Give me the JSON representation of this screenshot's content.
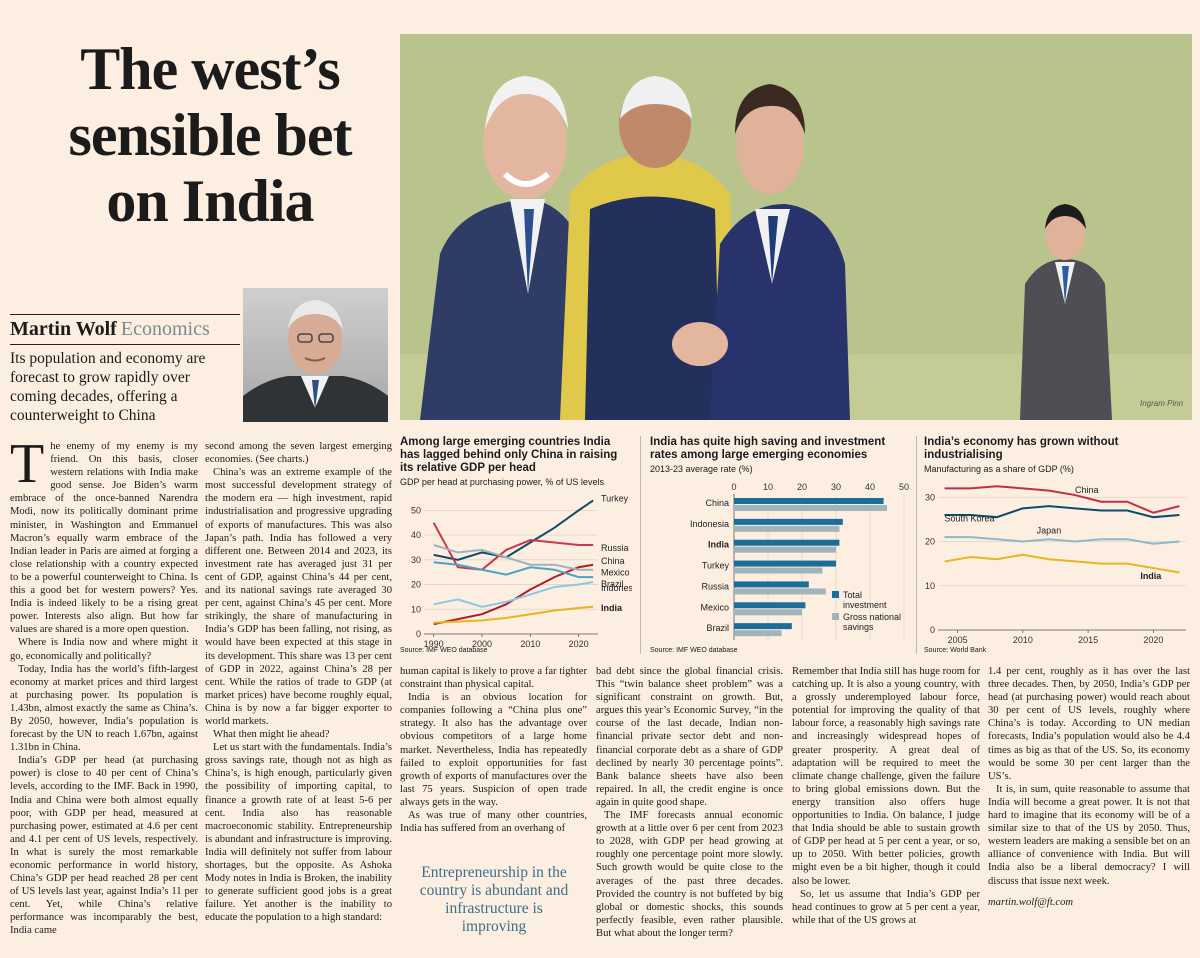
{
  "article": {
    "headline": [
      "The west’s",
      "sensible bet",
      "on India"
    ],
    "author": "Martin Wolf",
    "section": "Economics",
    "standfirst": "Its population and economy are forecast to grow rapidly over coming decades, offering a counterweight to China",
    "illustration_signature": "Ingram Pinn",
    "pull_quote": "Entrepreneurship in the country is abundant and infrastructure is improving",
    "email": "martin.wolf@ft.com",
    "dropcap": "T",
    "columns": [
      [
        "he enemy of my enemy is my friend. On this basis, closer western relations with India make good sense. Joe Biden’s warm embrace of the once-banned Narendra Modi, now its politically dominant prime minister, in Washington and Emmanuel Macron’s equally warm embrace of the Indian leader in Paris are aimed at forging a close relationship with a country expected to be a powerful counterweight to China. Is this a good bet for western powers? Yes. India is indeed likely to be a rising great power. Interests also align. But how far values are shared is a more open question.",
        "Where is India now and where might it go, economically and politically?",
        "Today, India has the world’s fifth-largest economy at market prices and third largest at purchasing power. Its population is 1.43bn, almost exactly the same as China’s. By 2050, however, India’s population is forecast by the UN to reach 1.67bn, against 1.31bn in China.",
        "India’s GDP per head (at purchasing power) is close to 40 per cent of China’s levels, according to the IMF. Back in 1990, India and China were both almost equally poor, with GDP per head, measured at purchasing power, estimated at 4.6 per cent and 4.1 per cent of US levels, respectively. In what is surely the most remarkable economic performance in world history, China’s GDP per head reached 28 per cent of US levels last year, against India’s 11 per cent. Yet, while China’s relative performance was incomparably the best, India came"
      ],
      [
        "second among the seven largest emerging economies. (See charts.)",
        "China’s was an extreme example of the most successful development strategy of the modern era — high investment, rapid industrialisation and progressive upgrading of exports of manufactures. This was also Japan’s path. India has followed a very different one. Between 2014 and 2023, its investment rate has averaged just 31 per cent of GDP, against China’s 44 per cent, and its national savings rate averaged 30 per cent, against China’s 45 per cent. More strikingly, the share of manufacturing in India’s GDP has been falling, not rising, as would have been expected at this stage in its development. This share was 13 per cent of GDP in 2022, against China’s 28 per cent. While the ratios of trade to GDP (at market prices) have become roughly equal, China is by now a far bigger exporter to world markets.",
        "What then might lie ahead?",
        "Let us start with the fundamentals. India’s gross savings rate, though not as high as China’s, is high enough, particularly given the possibility of importing capital, to finance a growth rate of at least 5-6 per cent. India also has reasonable macroeconomic stability. Entrepreneurship is abundant and infrastructure is improving. India will definitely not suffer from labour shortages, but the opposite. As Ashoka Mody notes in India is Broken, the inability to generate sufficient good jobs is a great failure. Yet another is the inability to educate the population to a high standard:"
      ],
      [
        "human capital is likely to prove a far tighter constraint than physical capital.",
        "India is an obvious location for companies following a “China plus one” strategy. It also has the advantage over obvious competitors of a large home market. Nevertheless, India has repeatedly failed to exploit opportunities for fast growth of exports of manufactures over the last 75 years. Suspicion of open trade always gets in the way.",
        "As was true of many other countries, India has suffered from an overhang of"
      ],
      [
        "bad debt since the global financial crisis. This “twin balance sheet problem” was a significant constraint on growth. But, argues this year’s Economic Survey, “in the course of the last decade, Indian non-financial private sector debt and non-financial corporate debt as a share of GDP declined by nearly 30 percentage points”. Bank balance sheets have also been repaired. In all, the credit engine is once again in quite good shape.",
        "The IMF forecasts annual economic growth at a little over 6 per cent from 2023 to 2028, with GDP per head growing at roughly one percentage point more slowly. Such growth would be quite close to the averages of the past three decades. Provided the country is not buffeted by big global or domestic shocks, this sounds perfectly feasible, even rather plausible. But what about the longer term?"
      ],
      [
        "Remember that India still has huge room for catching up. It is also a young country, with a grossly underemployed labour force, potential for improving the quality of that labour force, a reasonably high savings rate and increasingly widespread hopes of greater prosperity. A great deal of adaptation will be required to meet the climate change challenge, given the failure to bring global emissions down. But the energy transition also offers huge opportunities to India. On balance, I judge that India should be able to sustain growth of GDP per head at 5 per cent a year, or so, up to 2050. With better policies, growth might even be a bit higher, though it could also be lower.",
        "So, let us assume that India’s GDP per head continues to grow at 5 per cent a year, while that of the US grows at"
      ],
      [
        "1.4 per cent, roughly as it has over the last three decades. Then, by 2050, India’s GDP per head (at purchasing power) would reach about 30 per cent of US levels, roughly where China’s is today. According to UN median forecasts, India’s population would also be 4.4 times as big as that of the US. So, its economy would be some 30 per cent larger than the US’s.",
        "It is, in sum, quite reasonable to assume that India will become a great power. It is not that hard to imagine that its economy will be of a similar size to that of the US by 2050. Thus, western leaders are making a sensible bet on an alliance of convenience with India. But will India also be a liberal democracy? I will discuss that issue next week."
      ]
    ]
  },
  "chart_data": [
    {
      "type": "line",
      "title": "Among large emerging countries India has lagged behind only China in raising its relative GDP per head",
      "subtitle": "GDP per head at purchasing power, % of US levels",
      "source": "Source: IMF WEO database",
      "x": [
        1990,
        1995,
        2000,
        2005,
        2010,
        2015,
        2020,
        2023
      ],
      "xticks": [
        "1990",
        "2000",
        "2010",
        "2020"
      ],
      "yticks": [
        "0",
        "10",
        "20",
        "30",
        "40",
        "50"
      ],
      "ylim": [
        0,
        55
      ],
      "series": [
        {
          "name": "Turkey",
          "color": "#0d4a6b",
          "values": [
            32,
            30,
            33,
            31,
            37,
            43,
            50,
            54
          ]
        },
        {
          "name": "Russia",
          "color": "#c9394d",
          "values": [
            45,
            27,
            26,
            34,
            38,
            37,
            36,
            36
          ]
        },
        {
          "name": "China",
          "color": "#b31b2a",
          "values": [
            4,
            6,
            8,
            12,
            18,
            23,
            27,
            28
          ]
        },
        {
          "name": "Mexico",
          "color": "#9fb3be",
          "values": [
            36,
            33,
            34,
            31,
            28,
            28,
            26,
            26
          ]
        },
        {
          "name": "Brazil",
          "color": "#4aa2c9",
          "values": [
            29,
            28,
            26,
            24,
            27,
            26,
            23,
            23
          ]
        },
        {
          "name": "Indonesia",
          "color": "#8fc6e0",
          "values": [
            12,
            14,
            11,
            13,
            16,
            19,
            20,
            21
          ]
        },
        {
          "name": "India",
          "color": "#e7b51f",
          "values": [
            4.6,
            5,
            5.5,
            6.5,
            8,
            9.5,
            10.5,
            11
          ]
        }
      ]
    },
    {
      "type": "bar",
      "title": "India has quite high saving and investment rates among large emerging economies",
      "subtitle": "2013-23 average rate (%)",
      "source": "Source: IMF WEO database",
      "categories": [
        "China",
        "Indonesia",
        "India",
        "Turkey",
        "Russia",
        "Mexico",
        "Brazil"
      ],
      "xticks": [
        "0",
        "10",
        "20",
        "30",
        "40",
        "50"
      ],
      "xlim": [
        0,
        50
      ],
      "series": [
        {
          "name": "Total investment",
          "color": "#1a6e99",
          "values": [
            44,
            32,
            31,
            30,
            22,
            21,
            17
          ]
        },
        {
          "name": "Gross national savings",
          "color": "#a3b3ba",
          "values": [
            45,
            31,
            30,
            26,
            27,
            20,
            14
          ]
        }
      ]
    },
    {
      "type": "line",
      "title": "India’s economy has grown without industrialising",
      "subtitle": "Manufacturing as a share of GDP (%)",
      "source": "Source: World Bank",
      "x": [
        2004,
        2006,
        2008,
        2010,
        2012,
        2014,
        2016,
        2018,
        2020,
        2022
      ],
      "xticks": [
        "2005",
        "2010",
        "2015",
        "2020"
      ],
      "yticks": [
        "0",
        "10",
        "20",
        "30"
      ],
      "ylim": [
        0,
        33
      ],
      "series": [
        {
          "name": "China",
          "color": "#c22f45",
          "values": [
            32,
            32,
            32.5,
            32,
            31.5,
            30.5,
            29,
            29,
            26.5,
            28
          ]
        },
        {
          "name": "South Korea",
          "color": "#0d4a6b",
          "values": [
            26,
            26,
            25.5,
            27.5,
            28,
            27.5,
            27,
            27,
            25.5,
            26
          ]
        },
        {
          "name": "Japan",
          "color": "#8fb7ca",
          "values": [
            21,
            21,
            20.5,
            20,
            20.5,
            20,
            20.5,
            20.5,
            19.5,
            20
          ]
        },
        {
          "name": "India",
          "color": "#e7b51f",
          "values": [
            15.5,
            16.5,
            16,
            17,
            16,
            15.5,
            15,
            15,
            14,
            13
          ]
        }
      ]
    }
  ]
}
